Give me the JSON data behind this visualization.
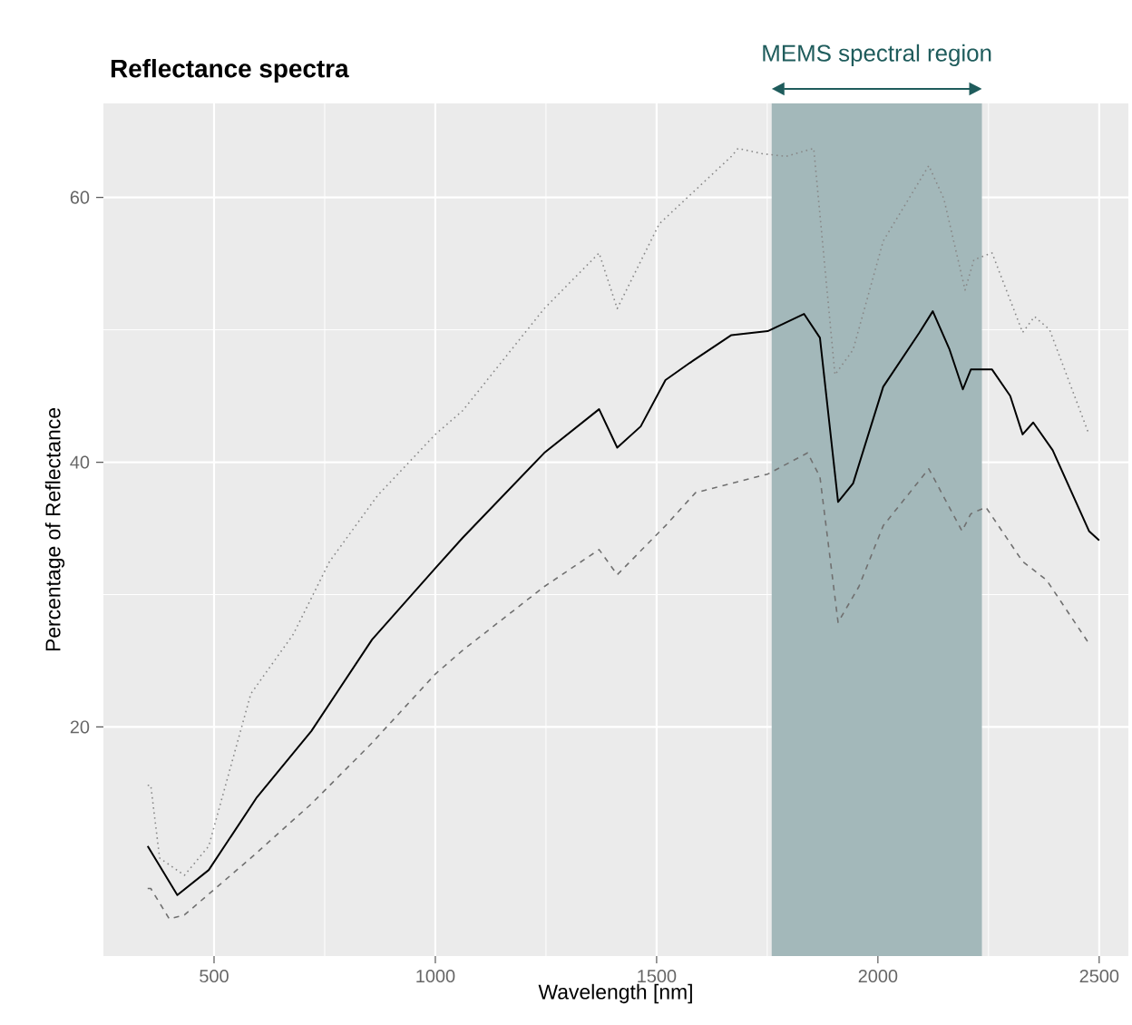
{
  "chart_data": {
    "type": "line",
    "title": "Reflectance spectra",
    "xlabel": "Wavelength [nm]",
    "ylabel": "Percentage of Reflectance",
    "xlim": [
      250,
      2566
    ],
    "ylim": [
      2.7,
      67.1
    ],
    "xticks": [
      500,
      1000,
      1500,
      2000,
      2500
    ],
    "yticks": [
      20,
      40,
      60
    ],
    "grid": true,
    "bands": [
      {
        "axis": "x",
        "from": 1760,
        "to": 2235,
        "label": "MEMS spectral region",
        "color": "#a3b8ba"
      }
    ],
    "series": [
      {
        "color": "#888888",
        "line_style": "dotted",
        "x": [
          350,
          357,
          377,
          433,
          488,
          583,
          679,
          761,
          870,
          1000,
          1062,
          1246,
          1370,
          1411,
          1506,
          1669,
          1684,
          1739,
          1792,
          1855,
          1903,
          1944,
          2012,
          2115,
          2149,
          2197,
          2217,
          2258,
          2327,
          2354,
          2388,
          2477
        ],
        "values": [
          15.6,
          15.6,
          10.1,
          8.8,
          11.0,
          22.5,
          27.0,
          32.5,
          37.5,
          42.1,
          43.9,
          51.6,
          55.8,
          51.6,
          58.0,
          63.1,
          63.7,
          63.3,
          63.1,
          63.7,
          46.6,
          48.5,
          56.7,
          62.4,
          59.9,
          53.0,
          55.3,
          55.8,
          49.8,
          51.0,
          50.0,
          42.1
        ]
      },
      {
        "color": "#000000",
        "line_style": "solid",
        "x": [
          350,
          417,
          488,
          597,
          720,
          857,
          1000,
          1062,
          1246,
          1370,
          1411,
          1464,
          1520,
          1575,
          1669,
          1751,
          1833,
          1869,
          1910,
          1944,
          2012,
          2094,
          2124,
          2162,
          2192,
          2210,
          2258,
          2299,
          2327,
          2351,
          2395,
          2477,
          2500
        ],
        "values": [
          11.0,
          7.3,
          9.2,
          14.7,
          19.7,
          26.6,
          32.0,
          34.3,
          40.7,
          44.0,
          41.1,
          42.7,
          46.2,
          47.5,
          49.6,
          49.9,
          51.2,
          49.4,
          37.0,
          38.4,
          45.7,
          49.8,
          51.4,
          48.5,
          45.5,
          47.0,
          47.0,
          45.0,
          42.1,
          43.0,
          40.9,
          34.8,
          34.1
        ]
      },
      {
        "color": "#707070",
        "line_style": "dashed",
        "x": [
          350,
          357,
          399,
          433,
          583,
          720,
          857,
          1000,
          1062,
          1246,
          1370,
          1411,
          1520,
          1588,
          1751,
          1841,
          1869,
          1910,
          1957,
          2012,
          2115,
          2190,
          2210,
          2244,
          2327,
          2381,
          2477
        ],
        "values": [
          7.8,
          7.8,
          5.5,
          5.8,
          10.1,
          14.2,
          18.8,
          24.0,
          25.8,
          30.6,
          33.4,
          31.5,
          35.2,
          37.7,
          39.1,
          40.7,
          38.9,
          27.9,
          30.6,
          35.2,
          39.5,
          34.8,
          36.1,
          36.6,
          32.5,
          31.1,
          26.3
        ]
      }
    ]
  }
}
